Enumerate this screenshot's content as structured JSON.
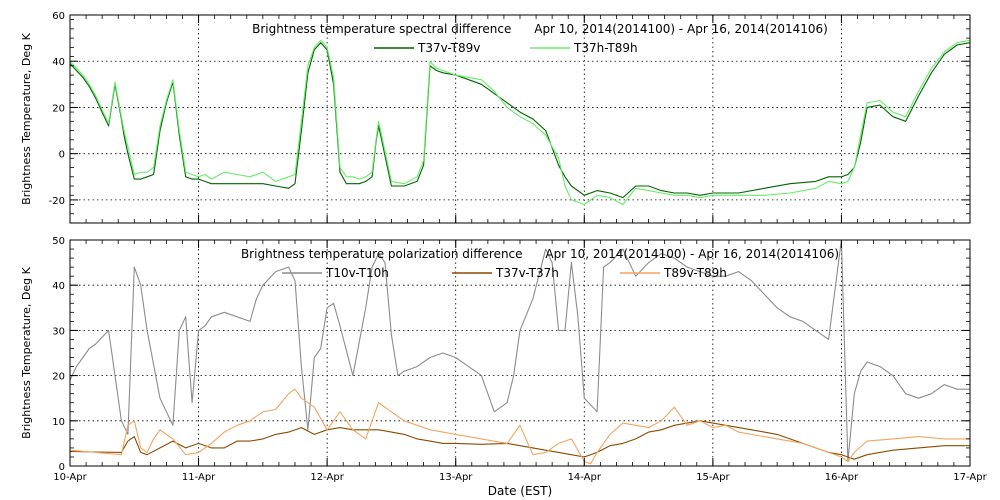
{
  "figure": {
    "xlabel": "Date (EST)",
    "x_tick_labels": [
      "10-Apr",
      "11-Apr",
      "12-Apr",
      "13-Apr",
      "14-Apr",
      "15-Apr",
      "16-Apr",
      "17-Apr"
    ]
  },
  "colors": {
    "t37v_t89v": "#006400",
    "t37h_t89h": "#66ee66",
    "t10v_t10h": "#8c8c8c",
    "t37v_t37h": "#8b4a00",
    "t89v_t89h": "#f4a460"
  },
  "chart_data": [
    {
      "type": "line",
      "title": "Brightness temperature spectral difference      Apr 10, 2014(2014100) - Apr 16, 2014(2014106)",
      "xlabel": "",
      "ylabel": "Brightness Temperature, Deg K",
      "xlim": [
        0,
        7
      ],
      "ylim": [
        -30,
        60
      ],
      "yticks": [
        -20,
        0,
        20,
        40,
        60
      ],
      "grid": true,
      "legend_position": "top-center",
      "series": [
        {
          "name": "T37v-T89v",
          "color": "#006400",
          "x": [
            0.0,
            0.05,
            0.1,
            0.15,
            0.2,
            0.25,
            0.3,
            0.35,
            0.4,
            0.42,
            0.45,
            0.5,
            0.55,
            0.6,
            0.65,
            0.7,
            0.75,
            0.8,
            0.85,
            0.9,
            0.95,
            1.0,
            1.05,
            1.1,
            1.2,
            1.3,
            1.4,
            1.5,
            1.6,
            1.7,
            1.75,
            1.8,
            1.85,
            1.9,
            1.95,
            2.0,
            2.05,
            2.1,
            2.15,
            2.2,
            2.25,
            2.3,
            2.35,
            2.38,
            2.4,
            2.5,
            2.6,
            2.7,
            2.75,
            2.8,
            2.85,
            2.9,
            3.0,
            3.1,
            3.2,
            3.3,
            3.4,
            3.5,
            3.6,
            3.7,
            3.8,
            3.85,
            3.9,
            4.0,
            4.1,
            4.2,
            4.3,
            4.4,
            4.5,
            4.6,
            4.7,
            4.8,
            4.9,
            5.0,
            5.2,
            5.4,
            5.6,
            5.8,
            5.9,
            6.0,
            6.05,
            6.1,
            6.15,
            6.2,
            6.3,
            6.4,
            6.5,
            6.6,
            6.7,
            6.8,
            6.9,
            7.0
          ],
          "y": [
            39,
            36,
            33,
            29,
            24,
            18,
            12,
            30,
            15,
            8,
            0,
            -11,
            -11,
            -10,
            -9,
            10,
            22,
            31,
            8,
            -10,
            -11,
            -11,
            -12,
            -13,
            -13,
            -13,
            -13,
            -13,
            -14,
            -15,
            -13,
            10,
            35,
            45,
            48,
            45,
            30,
            -8,
            -13,
            -13,
            -13,
            -12,
            -10,
            5,
            12,
            -14,
            -14,
            -12,
            -5,
            38,
            36,
            35,
            34,
            32,
            30,
            26,
            22,
            18,
            15,
            10,
            -5,
            -10,
            -14,
            -18,
            -16,
            -17,
            -19,
            -14,
            -14,
            -16,
            -17,
            -17,
            -18,
            -17,
            -17,
            -15,
            -13,
            -12,
            -10,
            -10,
            -9,
            -6,
            5,
            20,
            21,
            16,
            14,
            25,
            35,
            43,
            47,
            48
          ]
        },
        {
          "name": "T37h-T89h",
          "color": "#66ee66",
          "x": [
            0.0,
            0.05,
            0.1,
            0.15,
            0.2,
            0.25,
            0.3,
            0.35,
            0.4,
            0.42,
            0.45,
            0.5,
            0.55,
            0.6,
            0.65,
            0.7,
            0.75,
            0.8,
            0.85,
            0.9,
            0.95,
            1.0,
            1.05,
            1.1,
            1.2,
            1.3,
            1.4,
            1.5,
            1.6,
            1.7,
            1.75,
            1.8,
            1.85,
            1.9,
            1.95,
            2.0,
            2.05,
            2.1,
            2.15,
            2.2,
            2.25,
            2.3,
            2.35,
            2.38,
            2.4,
            2.5,
            2.6,
            2.7,
            2.75,
            2.8,
            2.85,
            2.9,
            3.0,
            3.1,
            3.2,
            3.3,
            3.4,
            3.5,
            3.6,
            3.7,
            3.8,
            3.85,
            3.9,
            4.0,
            4.1,
            4.2,
            4.3,
            4.4,
            4.5,
            4.6,
            4.7,
            4.8,
            4.9,
            5.0,
            5.2,
            5.4,
            5.6,
            5.8,
            5.9,
            6.0,
            6.05,
            6.1,
            6.15,
            6.2,
            6.3,
            6.4,
            6.5,
            6.6,
            6.7,
            6.8,
            6.9,
            7.0
          ],
          "y": [
            40,
            37,
            34,
            30,
            25,
            19,
            13,
            31,
            16,
            10,
            3,
            -9,
            -8,
            -8,
            -6,
            12,
            23,
            32,
            10,
            -8,
            -9,
            -10,
            -9,
            -11,
            -8,
            -9,
            -10,
            -8,
            -12,
            -10,
            -9,
            14,
            38,
            46,
            49,
            46,
            33,
            -6,
            -10,
            -10,
            -11,
            -10,
            -8,
            6,
            14,
            -12,
            -13,
            -10,
            -3,
            40,
            37,
            36,
            34,
            33,
            32,
            27,
            20,
            16,
            13,
            8,
            -2,
            -14,
            -20,
            -22,
            -18,
            -19,
            -22,
            -15,
            -16,
            -17,
            -18,
            -18,
            -19,
            -18,
            -18,
            -18,
            -17,
            -15,
            -12,
            -13,
            -12,
            -6,
            8,
            22,
            23,
            18,
            16,
            27,
            37,
            44,
            48,
            49
          ]
        }
      ]
    },
    {
      "type": "line",
      "title": "Brightness temperature polarization difference      Apr 10, 2014(2014100) - Apr 16, 2014(2014106)",
      "xlabel": "Date (EST)",
      "ylabel": "Brightness Temperature, Deg K",
      "xlim": [
        0,
        7
      ],
      "ylim": [
        0,
        50
      ],
      "yticks": [
        0,
        10,
        20,
        30,
        40,
        50
      ],
      "grid": true,
      "legend_position": "top-center",
      "series": [
        {
          "name": "T10v-T10h",
          "color": "#8c8c8c",
          "x": [
            0.0,
            0.05,
            0.1,
            0.15,
            0.2,
            0.3,
            0.4,
            0.45,
            0.5,
            0.55,
            0.6,
            0.7,
            0.8,
            0.85,
            0.9,
            0.95,
            1.0,
            1.05,
            1.1,
            1.2,
            1.3,
            1.4,
            1.45,
            1.5,
            1.6,
            1.7,
            1.75,
            1.8,
            1.85,
            1.9,
            1.95,
            2.0,
            2.05,
            2.1,
            2.2,
            2.3,
            2.35,
            2.4,
            2.45,
            2.5,
            2.55,
            2.6,
            2.7,
            2.8,
            2.9,
            3.0,
            3.1,
            3.2,
            3.3,
            3.4,
            3.45,
            3.5,
            3.6,
            3.7,
            3.75,
            3.8,
            3.85,
            3.9,
            3.95,
            4.0,
            4.1,
            4.15,
            4.2,
            4.3,
            4.4,
            4.5,
            4.6,
            4.7,
            4.8,
            4.9,
            5.0,
            5.1,
            5.2,
            5.3,
            5.4,
            5.5,
            5.6,
            5.7,
            5.8,
            5.9,
            6.0,
            6.05,
            6.1,
            6.15,
            6.2,
            6.3,
            6.4,
            6.5,
            6.6,
            6.7,
            6.8,
            6.9,
            7.0
          ],
          "y": [
            19,
            22,
            24,
            26,
            27,
            30,
            10,
            7,
            44,
            40,
            30,
            15,
            9,
            30,
            33,
            14,
            30,
            31,
            33,
            34,
            33,
            32,
            37,
            40,
            43,
            44,
            41,
            22,
            8,
            24,
            26,
            35,
            36,
            31,
            20,
            35,
            44,
            47,
            45,
            29,
            20,
            21,
            22,
            24,
            25,
            24,
            22,
            20,
            12,
            14,
            20,
            30,
            37,
            48,
            45,
            30,
            30,
            45,
            33,
            15,
            12,
            44,
            45,
            48,
            42,
            45,
            47,
            46,
            44,
            43,
            42,
            42,
            43,
            41,
            38,
            35,
            33,
            32,
            30,
            28,
            50,
            1,
            16,
            21,
            23,
            22,
            20,
            16,
            15,
            16,
            18,
            17,
            17
          ]
        },
        {
          "name": "T37v-T37h",
          "color": "#8b4a00",
          "x": [
            0.0,
            0.2,
            0.4,
            0.45,
            0.5,
            0.55,
            0.6,
            0.7,
            0.8,
            0.9,
            1.0,
            1.1,
            1.2,
            1.3,
            1.4,
            1.5,
            1.6,
            1.7,
            1.8,
            1.9,
            2.0,
            2.1,
            2.2,
            2.3,
            2.4,
            2.5,
            2.6,
            2.7,
            2.8,
            2.9,
            3.0,
            3.2,
            3.4,
            3.5,
            3.6,
            3.7,
            3.8,
            3.9,
            4.0,
            4.1,
            4.2,
            4.3,
            4.4,
            4.5,
            4.6,
            4.7,
            4.8,
            4.9,
            5.0,
            5.1,
            5.2,
            5.3,
            5.4,
            5.5,
            5.6,
            5.7,
            5.8,
            5.9,
            6.0,
            6.05,
            6.1,
            6.2,
            6.4,
            6.6,
            6.8,
            7.0
          ],
          "y": [
            3.2,
            3.1,
            3.0,
            5.5,
            6.5,
            3.0,
            2.5,
            4.0,
            5.5,
            4.0,
            5.0,
            4.0,
            4.0,
            5.5,
            5.5,
            6.0,
            7.0,
            7.5,
            8.5,
            7.0,
            8.0,
            8.5,
            8.0,
            8.0,
            8.0,
            7.5,
            7.0,
            6.0,
            5.5,
            5.0,
            5.0,
            4.8,
            5.0,
            4.5,
            4.0,
            3.5,
            3.0,
            2.5,
            2.0,
            3.0,
            4.5,
            5.0,
            6.0,
            7.5,
            8.0,
            9.0,
            9.5,
            10.0,
            9.5,
            9.0,
            8.5,
            8.0,
            7.5,
            7.0,
            6.0,
            5.0,
            4.0,
            3.0,
            2.5,
            2.0,
            1.5,
            2.5,
            3.5,
            4.0,
            4.5,
            4.5
          ]
        },
        {
          "name": "T89v-T89h",
          "color": "#f4a460",
          "x": [
            0.0,
            0.2,
            0.4,
            0.45,
            0.5,
            0.55,
            0.6,
            0.65,
            0.7,
            0.8,
            0.9,
            1.0,
            1.1,
            1.2,
            1.3,
            1.4,
            1.5,
            1.6,
            1.7,
            1.75,
            1.8,
            1.85,
            1.9,
            2.0,
            2.1,
            2.2,
            2.3,
            2.4,
            2.5,
            2.6,
            2.7,
            2.8,
            2.9,
            3.0,
            3.2,
            3.4,
            3.5,
            3.6,
            3.7,
            3.8,
            3.9,
            4.0,
            4.05,
            4.1,
            4.2,
            4.3,
            4.4,
            4.5,
            4.6,
            4.7,
            4.8,
            4.9,
            5.0,
            5.1,
            5.2,
            5.3,
            5.4,
            5.5,
            5.6,
            5.7,
            5.8,
            5.9,
            6.0,
            6.05,
            6.1,
            6.2,
            6.4,
            6.6,
            6.8,
            7.0
          ],
          "y": [
            3.5,
            3.0,
            2.5,
            9.0,
            10.0,
            4.0,
            3.0,
            6.0,
            8.0,
            6.0,
            2.5,
            3.0,
            5.0,
            7.5,
            9.0,
            10.0,
            12.0,
            12.5,
            16.0,
            17.0,
            15.0,
            14.0,
            13.0,
            8.0,
            12.0,
            8.0,
            6.0,
            14.0,
            12.0,
            10.0,
            9.0,
            8.0,
            7.5,
            7.0,
            6.0,
            5.0,
            9.0,
            2.5,
            3.0,
            5.0,
            6.0,
            1.0,
            0.5,
            3.0,
            7.0,
            9.5,
            9.0,
            8.5,
            10.0,
            13.0,
            9.0,
            10.0,
            8.5,
            9.0,
            7.5,
            7.0,
            6.5,
            6.0,
            5.5,
            5.0,
            4.0,
            3.0,
            2.0,
            1.0,
            3.0,
            5.5,
            6.0,
            6.5,
            6.0,
            6.0
          ]
        }
      ]
    }
  ]
}
